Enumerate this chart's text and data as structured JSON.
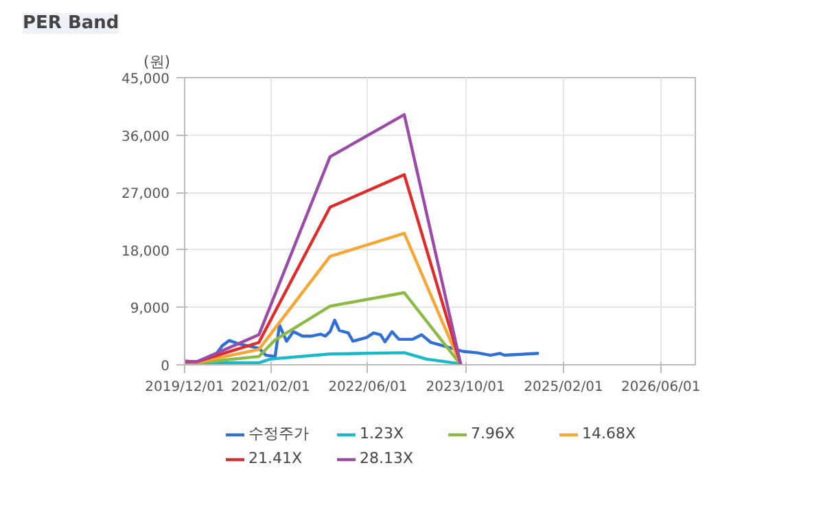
{
  "chart_data": {
    "type": "line",
    "title": "PER Band",
    "ylabel": "(원)",
    "xlim": [
      "2019-12-01",
      "2026-11-20"
    ],
    "xticks": [
      {
        "value": "2019-12-01",
        "label": "2019/12/01"
      },
      {
        "value": "2021-02-01",
        "label": "2021/02/01"
      },
      {
        "value": "2022-06-01",
        "label": "2022/06/01"
      },
      {
        "value": "2023-10-01",
        "label": "2023/10/01"
      },
      {
        "value": "2025-02-01",
        "label": "2025/02/01"
      },
      {
        "value": "2026-06-01",
        "label": "2026/06/01"
      }
    ],
    "ylim": [
      0,
      45000
    ],
    "yticks": [
      {
        "value": 0,
        "label": "0"
      },
      {
        "value": 9000,
        "label": "9,000"
      },
      {
        "value": 18000,
        "label": "18,000"
      },
      {
        "value": 27000,
        "label": "27,000"
      },
      {
        "value": 36000,
        "label": "36,000"
      },
      {
        "value": 45000,
        "label": "45,000"
      }
    ],
    "grid": true,
    "legend": "bottom",
    "marker": "none",
    "line_style": "solid",
    "series": [
      {
        "name": "수정주가",
        "color": "#2f6fd6",
        "x": [
          "2019-12-01",
          "2020-02-01",
          "2020-05-02",
          "2020-06-06",
          "2020-07-10",
          "2020-08-25",
          "2020-12-05",
          "2021-01-09",
          "2021-02-24",
          "2021-03-18",
          "2021-04-22",
          "2021-05-26",
          "2021-07-11",
          "2021-08-26",
          "2021-10-10",
          "2021-11-02",
          "2021-11-25",
          "2021-12-18",
          "2022-01-10",
          "2022-02-24",
          "2022-03-19",
          "2022-05-27",
          "2022-06-30",
          "2022-08-04",
          "2022-08-26",
          "2022-09-30",
          "2022-11-03",
          "2023-01-11",
          "2023-02-25",
          "2023-04-12",
          "2023-07-13",
          "2023-09-19",
          "2023-11-27",
          "2024-02-03",
          "2024-03-20",
          "2024-04-12",
          "2024-10-01"
        ],
        "values": [
          600,
          400,
          1500,
          3000,
          3800,
          3300,
          2600,
          1500,
          1300,
          6200,
          3700,
          5200,
          4500,
          4500,
          4800,
          4500,
          5200,
          7000,
          5400,
          5000,
          3700,
          4300,
          5000,
          4700,
          3600,
          5200,
          4000,
          4000,
          4700,
          3500,
          2700,
          2100,
          1900,
          1500,
          1800,
          1500,
          1800
        ]
      },
      {
        "name": "1.23X",
        "color": "#1ab9c8",
        "x": [
          "2019-12-01",
          "2020-12-05",
          "2021-02-01",
          "2021-11-25",
          "2022-05-27",
          "2022-11-30",
          "2023-03-20",
          "2023-08-27"
        ],
        "values": [
          300,
          300,
          900,
          1700,
          1800,
          1900,
          900,
          200
        ]
      },
      {
        "name": "7.96X",
        "color": "#8bbb45",
        "x": [
          "2019-12-01",
          "2020-02-01",
          "2020-12-05",
          "2021-02-24",
          "2021-11-25",
          "2022-11-30",
          "2023-09-08"
        ],
        "values": [
          400,
          300,
          1300,
          3900,
          9200,
          11300,
          0
        ]
      },
      {
        "name": "14.68X",
        "color": "#f7a533",
        "x": [
          "2019-12-01",
          "2020-02-01",
          "2020-12-05",
          "2021-11-25",
          "2022-11-30",
          "2023-09-08"
        ],
        "values": [
          500,
          400,
          2400,
          17000,
          20600,
          0
        ]
      },
      {
        "name": "21.41X",
        "color": "#e02b2b",
        "x": [
          "2019-12-01",
          "2020-02-01",
          "2020-12-05",
          "2021-11-25",
          "2022-11-30",
          "2023-09-08"
        ],
        "values": [
          500,
          500,
          3500,
          24700,
          29800,
          0
        ]
      },
      {
        "name": "28.13X",
        "color": "#9b4aa8",
        "x": [
          "2019-12-01",
          "2020-02-01",
          "2020-12-05",
          "2021-11-25",
          "2022-11-30",
          "2023-09-08"
        ],
        "values": [
          500,
          500,
          4700,
          32600,
          39200,
          0
        ]
      }
    ]
  }
}
